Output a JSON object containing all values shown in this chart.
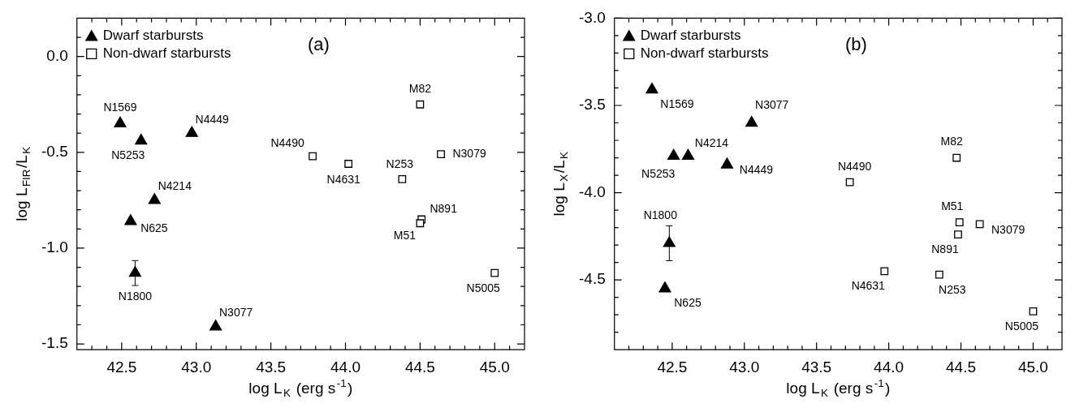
{
  "chart_data": [
    {
      "type": "scatter",
      "title": "(a)",
      "xlabel": "log L$_{K}$ (erg s$^{-1}$)",
      "ylabel": "log L$_{FIR}$/L$_{K}$",
      "xlim": [
        42.2,
        45.2
      ],
      "ylim": [
        -1.53,
        0.2
      ],
      "xticks": [
        {
          "value": 42.3,
          "label": null
        },
        {
          "value": 42.4,
          "label": null
        },
        {
          "value": 42.5,
          "label": "42.5"
        },
        {
          "value": 42.6,
          "label": null
        },
        {
          "value": 42.7,
          "label": null
        },
        {
          "value": 42.8,
          "label": null
        },
        {
          "value": 42.9,
          "label": null
        },
        {
          "value": 43.0,
          "label": "43.0"
        },
        {
          "value": 43.1,
          "label": null
        },
        {
          "value": 43.2,
          "label": null
        },
        {
          "value": 43.3,
          "label": null
        },
        {
          "value": 43.4,
          "label": null
        },
        {
          "value": 43.5,
          "label": "43.5"
        },
        {
          "value": 43.6,
          "label": null
        },
        {
          "value": 43.7,
          "label": null
        },
        {
          "value": 43.8,
          "label": null
        },
        {
          "value": 43.9,
          "label": null
        },
        {
          "value": 44.0,
          "label": "44.0"
        },
        {
          "value": 44.1,
          "label": null
        },
        {
          "value": 44.2,
          "label": null
        },
        {
          "value": 44.3,
          "label": null
        },
        {
          "value": 44.4,
          "label": null
        },
        {
          "value": 44.5,
          "label": "44.5"
        },
        {
          "value": 44.6,
          "label": null
        },
        {
          "value": 44.7,
          "label": null
        },
        {
          "value": 44.8,
          "label": null
        },
        {
          "value": 44.9,
          "label": null
        },
        {
          "value": 45.0,
          "label": "45.0"
        },
        {
          "value": 45.1,
          "label": null
        }
      ],
      "yticks": [
        {
          "value": -1.5,
          "label": "-1.5"
        },
        {
          "value": -1.4,
          "label": null
        },
        {
          "value": -1.3,
          "label": null
        },
        {
          "value": -1.2,
          "label": null
        },
        {
          "value": -1.1,
          "label": null
        },
        {
          "value": -1.0,
          "label": "-1.0"
        },
        {
          "value": -0.9,
          "label": null
        },
        {
          "value": -0.8,
          "label": null
        },
        {
          "value": -0.7,
          "label": null
        },
        {
          "value": -0.6,
          "label": null
        },
        {
          "value": -0.5,
          "label": "-0.5"
        },
        {
          "value": -0.4,
          "label": null
        },
        {
          "value": -0.3,
          "label": null
        },
        {
          "value": -0.2,
          "label": null
        },
        {
          "value": -0.1,
          "label": null
        },
        {
          "value": 0.0,
          "label": "0.0"
        },
        {
          "value": 0.1,
          "label": null
        }
      ],
      "legend": "top left",
      "grid": false,
      "series": [
        {
          "name": "Dwarf starbursts",
          "color": "#000000",
          "marker": "triangle",
          "x": [
            42.49,
            42.63,
            42.97,
            42.72,
            42.56,
            42.59,
            43.13
          ],
          "values": [
            -0.35,
            -0.44,
            -0.4,
            -0.75,
            -0.86,
            -1.13,
            -1.41
          ],
          "errors": [
            null,
            null,
            null,
            null,
            null,
            0.065,
            null
          ]
        },
        {
          "name": "Non-dwarf starbursts",
          "color": "#000000",
          "marker": "square",
          "x": [
            44.5,
            43.78,
            44.02,
            44.38,
            44.64,
            44.51,
            44.5,
            45.0
          ],
          "values": [
            -0.25,
            -0.52,
            -0.56,
            -0.64,
            -0.51,
            -0.85,
            -0.87,
            -1.13
          ]
        }
      ],
      "annotations": [
        {
          "text": "N1569",
          "x": 42.49,
          "y": -0.35
        },
        {
          "text": "N5253",
          "x": 42.63,
          "y": -0.44
        },
        {
          "text": "N4449",
          "x": 42.97,
          "y": -0.4
        },
        {
          "text": "N4214",
          "x": 42.72,
          "y": -0.75
        },
        {
          "text": "N625",
          "x": 42.56,
          "y": -0.86
        },
        {
          "text": "N1800",
          "x": 42.59,
          "y": -1.13
        },
        {
          "text": "N3077",
          "x": 43.13,
          "y": -1.41
        },
        {
          "text": "M82",
          "x": 44.5,
          "y": -0.25
        },
        {
          "text": "N4490",
          "x": 43.78,
          "y": -0.52
        },
        {
          "text": "N4631",
          "x": 44.02,
          "y": -0.56
        },
        {
          "text": "N253",
          "x": 44.38,
          "y": -0.64
        },
        {
          "text": "N3079",
          "x": 44.64,
          "y": -0.51
        },
        {
          "text": "N891",
          "x": 44.51,
          "y": -0.85
        },
        {
          "text": "M51",
          "x": 44.5,
          "y": -0.87
        },
        {
          "text": "N5005",
          "x": 45.0,
          "y": -1.13
        }
      ]
    },
    {
      "type": "scatter",
      "title": "(b)",
      "xlabel": "log L$_{K}$ (erg s$^{-1}$)",
      "ylabel": "log L$_{X}$/L$_{K}$",
      "xlim": [
        42.1,
        45.2
      ],
      "ylim": [
        -4.9,
        -3.0
      ],
      "xticks": [
        {
          "value": 42.2,
          "label": null
        },
        {
          "value": 42.3,
          "label": null
        },
        {
          "value": 42.4,
          "label": null
        },
        {
          "value": 42.5,
          "label": "42.5"
        },
        {
          "value": 42.6,
          "label": null
        },
        {
          "value": 42.7,
          "label": null
        },
        {
          "value": 42.8,
          "label": null
        },
        {
          "value": 42.9,
          "label": null
        },
        {
          "value": 43.0,
          "label": "43.0"
        },
        {
          "value": 43.1,
          "label": null
        },
        {
          "value": 43.2,
          "label": null
        },
        {
          "value": 43.3,
          "label": null
        },
        {
          "value": 43.4,
          "label": null
        },
        {
          "value": 43.5,
          "label": "43.5"
        },
        {
          "value": 43.6,
          "label": null
        },
        {
          "value": 43.7,
          "label": null
        },
        {
          "value": 43.8,
          "label": null
        },
        {
          "value": 43.9,
          "label": null
        },
        {
          "value": 44.0,
          "label": "44.0"
        },
        {
          "value": 44.1,
          "label": null
        },
        {
          "value": 44.2,
          "label": null
        },
        {
          "value": 44.3,
          "label": null
        },
        {
          "value": 44.4,
          "label": null
        },
        {
          "value": 44.5,
          "label": "44.5"
        },
        {
          "value": 44.6,
          "label": null
        },
        {
          "value": 44.7,
          "label": null
        },
        {
          "value": 44.8,
          "label": null
        },
        {
          "value": 44.9,
          "label": null
        },
        {
          "value": 45.0,
          "label": "45.0"
        },
        {
          "value": 45.1,
          "label": null
        }
      ],
      "yticks": [
        {
          "value": -4.8,
          "label": null
        },
        {
          "value": -4.7,
          "label": null
        },
        {
          "value": -4.6,
          "label": null
        },
        {
          "value": -4.5,
          "label": "-4.5"
        },
        {
          "value": -4.4,
          "label": null
        },
        {
          "value": -4.3,
          "label": null
        },
        {
          "value": -4.2,
          "label": null
        },
        {
          "value": -4.1,
          "label": null
        },
        {
          "value": -4.0,
          "label": "-4.0"
        },
        {
          "value": -3.9,
          "label": null
        },
        {
          "value": -3.8,
          "label": null
        },
        {
          "value": -3.7,
          "label": null
        },
        {
          "value": -3.6,
          "label": null
        },
        {
          "value": -3.5,
          "label": "-3.5"
        },
        {
          "value": -3.4,
          "label": null
        },
        {
          "value": -3.3,
          "label": null
        },
        {
          "value": -3.2,
          "label": null
        },
        {
          "value": -3.1,
          "label": null
        },
        {
          "value": -3.0,
          "label": "-3.0"
        }
      ],
      "legend": "top left",
      "grid": false,
      "series": [
        {
          "name": "Dwarf starbursts",
          "color": "#000000",
          "marker": "triangle",
          "x": [
            42.36,
            43.05,
            42.51,
            42.61,
            42.88,
            42.48,
            42.45
          ],
          "values": [
            -3.41,
            -3.6,
            -3.79,
            -3.79,
            -3.84,
            -4.29,
            -4.55
          ],
          "errors": [
            null,
            null,
            null,
            null,
            null,
            0.1,
            null
          ]
        },
        {
          "name": "Non-dwarf starbursts",
          "color": "#000000",
          "marker": "square",
          "x": [
            44.47,
            43.73,
            44.49,
            44.63,
            44.48,
            43.97,
            44.35,
            45.0
          ],
          "values": [
            -3.8,
            -3.94,
            -4.17,
            -4.18,
            -4.24,
            -4.45,
            -4.47,
            -4.68
          ]
        }
      ],
      "annotations": [
        {
          "text": "N1569",
          "x": 42.36,
          "y": -3.41
        },
        {
          "text": "N3077",
          "x": 43.05,
          "y": -3.6
        },
        {
          "text": "N5253",
          "x": 42.51,
          "y": -3.79
        },
        {
          "text": "N4214",
          "x": 42.61,
          "y": -3.79
        },
        {
          "text": "N4449",
          "x": 42.88,
          "y": -3.84
        },
        {
          "text": "N1800",
          "x": 42.48,
          "y": -4.29
        },
        {
          "text": "N625",
          "x": 42.45,
          "y": -4.55
        },
        {
          "text": "M82",
          "x": 44.47,
          "y": -3.8
        },
        {
          "text": "N4490",
          "x": 43.73,
          "y": -3.94
        },
        {
          "text": "M51",
          "x": 44.49,
          "y": -4.17
        },
        {
          "text": "N3079",
          "x": 44.63,
          "y": -4.18
        },
        {
          "text": "N891",
          "x": 44.48,
          "y": -4.24
        },
        {
          "text": "N4631",
          "x": 43.97,
          "y": -4.45
        },
        {
          "text": "N253",
          "x": 44.35,
          "y": -4.47
        },
        {
          "text": "N5005",
          "x": 45.0,
          "y": -4.68
        }
      ]
    }
  ]
}
